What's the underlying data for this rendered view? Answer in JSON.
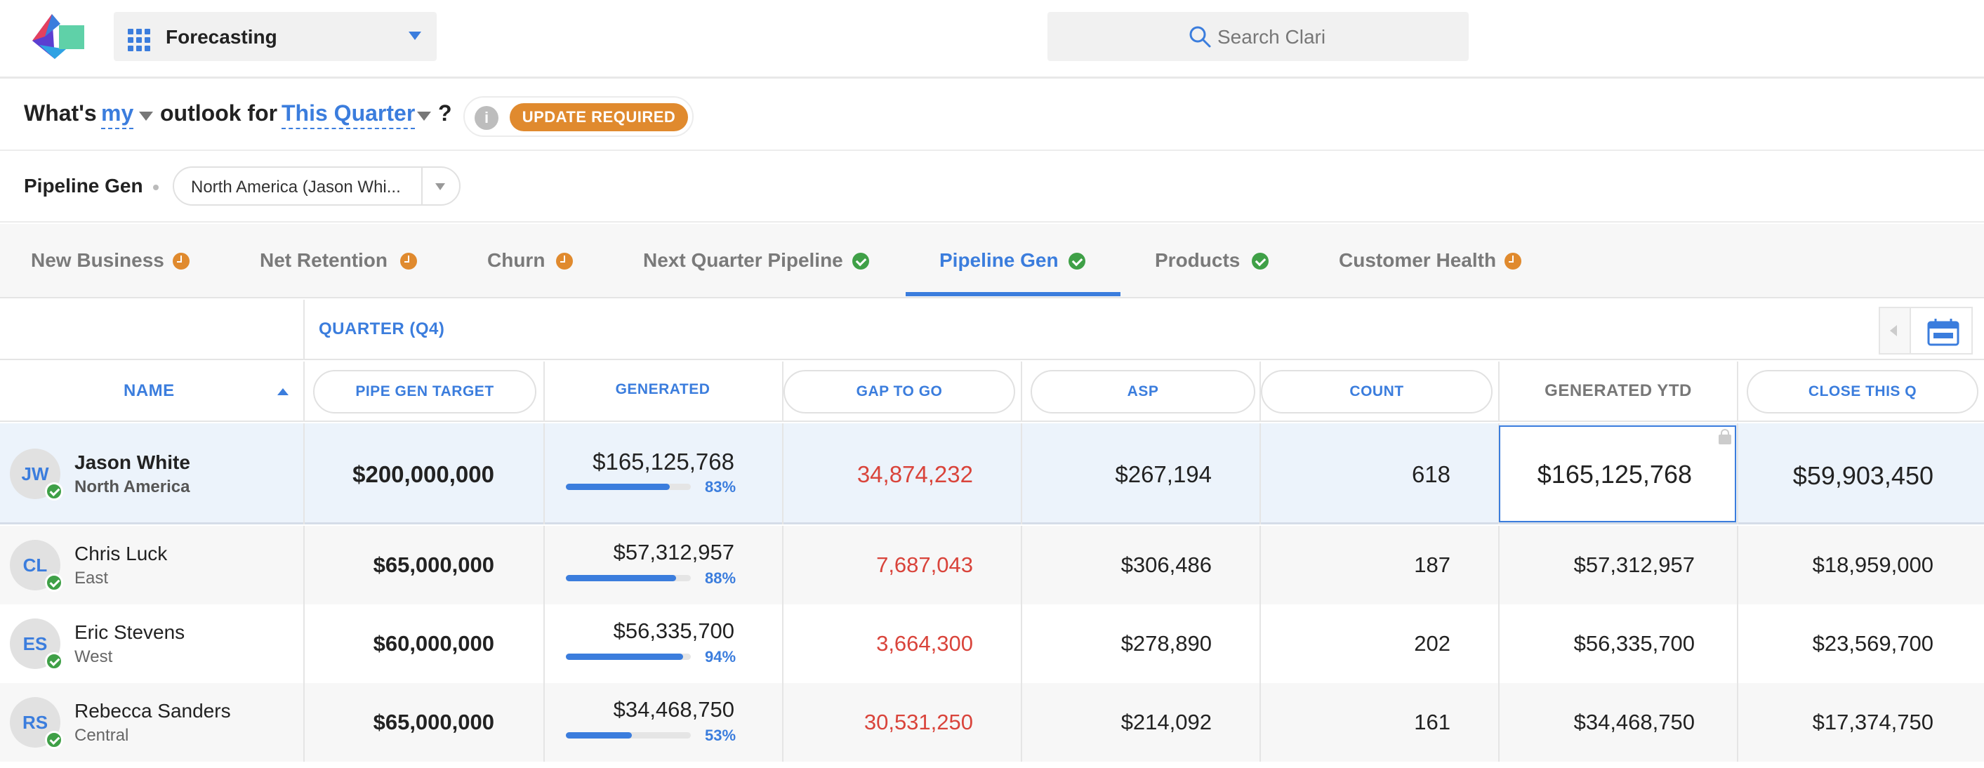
{
  "app": {
    "name": "Forecasting"
  },
  "search": {
    "placeholder": "Search Clari"
  },
  "question": {
    "prefix": "What's",
    "who": "my",
    "middle": "outlook for",
    "period": "This Quarter",
    "suffix": "?",
    "status_badge": "UPDATE REQUIRED"
  },
  "filter": {
    "title": "Pipeline Gen",
    "selected": "North America (Jason Whi..."
  },
  "tabs": [
    {
      "label": "New Business",
      "status": "pending"
    },
    {
      "label": "Net Retention",
      "status": "pending"
    },
    {
      "label": "Churn",
      "status": "pending"
    },
    {
      "label": "Next Quarter Pipeline",
      "status": "done"
    },
    {
      "label": "Pipeline Gen",
      "status": "done",
      "active": true
    },
    {
      "label": "Products",
      "status": "done"
    },
    {
      "label": "Customer Health",
      "status": "pending"
    }
  ],
  "table": {
    "period_label": "QUARTER (Q4)",
    "columns": {
      "name": "NAME",
      "target": "PIPE GEN TARGET",
      "generated": "GENERATED",
      "gap": "GAP TO GO",
      "asp": "ASP",
      "count": "COUNT",
      "ytd": "GENERATED YTD",
      "close": "CLOSE THIS Q"
    },
    "rows": [
      {
        "initials": "JW",
        "name": "Jason White",
        "region": "North America",
        "target": "$200,000,000",
        "generated": "$165,125,768",
        "pct_label": "83%",
        "pct": 0.83,
        "gap": "34,874,232",
        "asp": "$267,194",
        "count": "618",
        "ytd": "$165,125,768",
        "close": "$59,903,450"
      },
      {
        "initials": "CL",
        "name": "Chris Luck",
        "region": "East",
        "target": "$65,000,000",
        "generated": "$57,312,957",
        "pct_label": "88%",
        "pct": 0.88,
        "gap": "7,687,043",
        "asp": "$306,486",
        "count": "187",
        "ytd": "$57,312,957",
        "close": "$18,959,000"
      },
      {
        "initials": "ES",
        "name": "Eric Stevens",
        "region": "West",
        "target": "$60,000,000",
        "generated": "$56,335,700",
        "pct_label": "94%",
        "pct": 0.94,
        "gap": "3,664,300",
        "asp": "$278,890",
        "count": "202",
        "ytd": "$56,335,700",
        "close": "$23,569,700"
      },
      {
        "initials": "RS",
        "name": "Rebecca Sanders",
        "region": "Central",
        "target": "$65,000,000",
        "generated": "$34,468,750",
        "pct_label": "53%",
        "pct": 0.53,
        "gap": "30,531,250",
        "asp": "$214,092",
        "count": "161",
        "ytd": "$34,468,750",
        "close": "$17,374,750"
      }
    ]
  },
  "colors": {
    "accent": "#3b7ddd",
    "pending": "#e08a2e",
    "done": "#3fa047",
    "negative": "#d9443b"
  }
}
